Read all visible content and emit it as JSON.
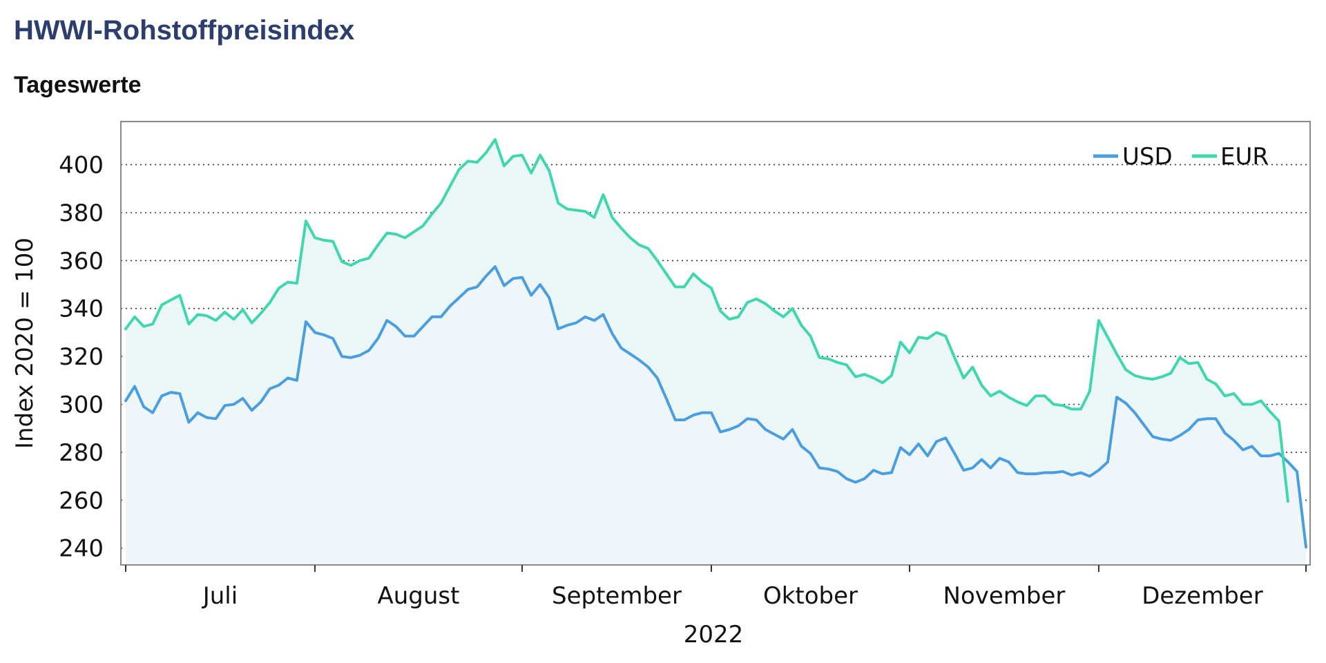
{
  "header": {
    "title": "HWWI-Rohstoffpreisindex",
    "subtitle": "Tageswerte"
  },
  "chart_data": {
    "type": "area",
    "ylabel": "Index 2020 = 100",
    "xlabel": "2022",
    "ylim": [
      233,
      418
    ],
    "yticks": [
      240,
      260,
      280,
      300,
      320,
      340,
      360,
      380,
      400
    ],
    "grid": "horizontal dotted",
    "legend_position": "top-right",
    "months": [
      "Juli",
      "August",
      "September",
      "Oktober",
      "November",
      "Dezember"
    ],
    "series": [
      {
        "name": "USD",
        "color": "#4a9ee0",
        "fill": "#eef6fa",
        "values": [
          301.5,
          307.5,
          299.0,
          296.5,
          303.5,
          305.0,
          304.5,
          292.5,
          296.5,
          294.5,
          294.0,
          299.5,
          300.0,
          302.5,
          297.5,
          301.0,
          306.5,
          308.0,
          311.0,
          310.0,
          334.5,
          330.0,
          329.0,
          327.5,
          320.0,
          319.5,
          320.5,
          322.5,
          327.5,
          335.0,
          332.5,
          328.5,
          328.5,
          332.5,
          336.5,
          336.5,
          341.0,
          344.5,
          348.0,
          349.0,
          353.5,
          357.5,
          349.5,
          352.5,
          353.0,
          345.5,
          350.0,
          344.5,
          331.5,
          333.0,
          334.0,
          336.5,
          335.0,
          337.5,
          329.5,
          323.5,
          321.0,
          318.5,
          315.5,
          311.0,
          302.5,
          293.5,
          293.5,
          295.5,
          296.5,
          296.5,
          288.5,
          289.5,
          291.0,
          294.0,
          293.5,
          289.5,
          287.5,
          285.5,
          289.5,
          282.5,
          279.5,
          273.5,
          273.0,
          272.0,
          269.0,
          267.5,
          269.0,
          272.5,
          271.0,
          271.5,
          282.0,
          279.0,
          283.5,
          278.5,
          284.5,
          286.0,
          279.5,
          272.5,
          273.5,
          277.0,
          273.5,
          277.5,
          276.0,
          271.5,
          271.0,
          271.0,
          271.5,
          271.5,
          272.0,
          270.5,
          271.5,
          270.0,
          272.5,
          276.0,
          303.0,
          300.5,
          296.5,
          291.5,
          286.5,
          285.5,
          285.0,
          287.0,
          289.5,
          293.5,
          294.0,
          294.0,
          288.0,
          285.0,
          281.0,
          282.5,
          278.5,
          278.5,
          279.5,
          276.0,
          272.0,
          240.5
        ]
      },
      {
        "name": "EUR",
        "color": "#3fd6b0",
        "fill": "#eaf7f6",
        "values": [
          331.5,
          336.5,
          332.5,
          333.5,
          341.5,
          343.5,
          345.5,
          333.5,
          337.5,
          337.0,
          335.0,
          338.5,
          335.5,
          339.5,
          334.0,
          338.0,
          342.5,
          348.5,
          351.0,
          350.5,
          376.5,
          369.5,
          368.5,
          368.0,
          359.5,
          358.0,
          360.0,
          361.0,
          366.5,
          371.5,
          371.0,
          369.5,
          372.0,
          374.5,
          379.5,
          384.0,
          391.0,
          398.0,
          401.5,
          401.0,
          405.0,
          410.5,
          399.5,
          403.5,
          404.0,
          396.5,
          404.0,
          397.5,
          384.0,
          381.5,
          381.0,
          380.5,
          378.0,
          387.5,
          378.0,
          373.5,
          369.5,
          366.5,
          365.0,
          360.0,
          354.5,
          349.0,
          349.0,
          354.5,
          351.0,
          348.5,
          339.0,
          335.5,
          336.5,
          342.5,
          344.0,
          342.0,
          339.0,
          336.5,
          340.0,
          333.0,
          328.5,
          319.5,
          319.0,
          317.5,
          316.5,
          311.5,
          312.5,
          311.0,
          309.0,
          312.0,
          326.0,
          321.5,
          328.0,
          327.5,
          330.0,
          328.5,
          319.5,
          311.0,
          315.5,
          308.0,
          303.5,
          305.5,
          303.0,
          301.0,
          299.5,
          303.5,
          303.5,
          300.0,
          299.5,
          298.0,
          298.0,
          305.5,
          335.0,
          328.0,
          321.0,
          314.5,
          312.0,
          311.0,
          310.5,
          311.5,
          313.0,
          319.5,
          317.0,
          317.5,
          310.5,
          308.5,
          303.5,
          304.5,
          300.0,
          300.0,
          301.5,
          297.0,
          293.0,
          259.5
        ]
      }
    ]
  }
}
